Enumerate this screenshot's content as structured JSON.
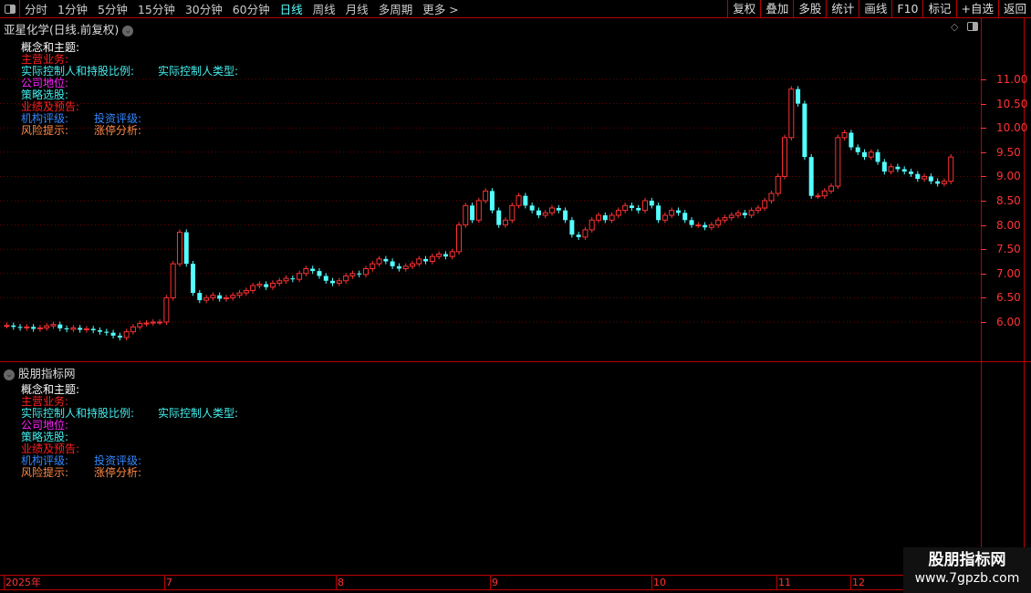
{
  "toolbar": {
    "periods": [
      "分时",
      "1分钟",
      "5分钟",
      "15分钟",
      "30分钟",
      "60分钟",
      "日线",
      "周线",
      "月线",
      "多周期",
      "更多 >"
    ],
    "active": "日线",
    "right_buttons": [
      "复权",
      "叠加",
      "多股",
      "统计",
      "画线",
      "F10",
      "标记",
      "+自选",
      "返回"
    ]
  },
  "main": {
    "title": "亚星化学(日线.前复权)",
    "info": {
      "concept": "概念和主题:",
      "business": "主营业务:",
      "controller": "实际控制人和持股比例:",
      "controller_type": "实际控制人类型:",
      "position": "公司地位:",
      "strategy": "策略选股:",
      "forecast": "业绩及预告:",
      "rating": "机构评级:",
      "invest_rating": "投资评级:",
      "risk": "风险提示:",
      "limit_up": "涨停分析:"
    }
  },
  "indicator": {
    "title": "股朋指标网"
  },
  "colors": {
    "up": "#ff3232",
    "down": "#54ffff",
    "axis": "#bb0000",
    "concept": "#ffffff",
    "business": "#ff2020",
    "controller": "#44eeee",
    "position": "#ff22ff",
    "strategy": "#44eeee",
    "forecast": "#ff2020",
    "rating": "#3388ff",
    "risk": "#ff8844"
  },
  "time_axis": {
    "labels": [
      "2025年",
      "7",
      "8",
      "9",
      "10",
      "11",
      "12"
    ]
  },
  "watermark": {
    "line1": "股朋指标网",
    "line2": "www.7gpzb.com"
  },
  "chart_data": {
    "type": "candlestick",
    "ylim": [
      5.5,
      11.9
    ],
    "yticks": [
      "11.00",
      "10.50",
      "10.00",
      "9.50",
      "9.00",
      "8.50",
      "8.00",
      "7.50",
      "7.00",
      "6.50",
      "6.00"
    ],
    "close": [
      5.93,
      5.9,
      5.88,
      5.9,
      5.86,
      5.88,
      5.92,
      5.95,
      5.87,
      5.85,
      5.88,
      5.84,
      5.86,
      5.83,
      5.8,
      5.78,
      5.72,
      5.68,
      5.8,
      5.9,
      5.97,
      5.98,
      6.0,
      6.0,
      6.5,
      7.2,
      7.85,
      7.2,
      6.6,
      6.45,
      6.5,
      6.55,
      6.48,
      6.5,
      6.55,
      6.6,
      6.65,
      6.75,
      6.78,
      6.72,
      6.8,
      6.85,
      6.9,
      6.88,
      7.0,
      7.1,
      7.05,
      6.95,
      6.85,
      6.8,
      6.85,
      6.95,
      7.0,
      6.98,
      7.1,
      7.2,
      7.3,
      7.25,
      7.15,
      7.1,
      7.15,
      7.2,
      7.3,
      7.25,
      7.35,
      7.4,
      7.35,
      7.45,
      8.0,
      8.4,
      8.1,
      8.5,
      8.7,
      8.3,
      8.0,
      8.1,
      8.4,
      8.6,
      8.4,
      8.3,
      8.2,
      8.25,
      8.35,
      8.3,
      8.1,
      7.8,
      7.75,
      7.9,
      8.1,
      8.2,
      8.1,
      8.2,
      8.3,
      8.4,
      8.35,
      8.3,
      8.5,
      8.4,
      8.1,
      8.2,
      8.3,
      8.25,
      8.1,
      8.0,
      8.0,
      7.95,
      8.0,
      8.1,
      8.15,
      8.2,
      8.25,
      8.2,
      8.3,
      8.35,
      8.5,
      8.65,
      9.0,
      9.8,
      10.8,
      10.5,
      9.4,
      8.6,
      8.6,
      8.7,
      8.8,
      9.8,
      9.9,
      9.6,
      9.5,
      9.4,
      9.5,
      9.3,
      9.1,
      9.2,
      9.15,
      9.1,
      9.05,
      8.95,
      9.0,
      8.9,
      8.85,
      8.9,
      9.4
    ]
  }
}
